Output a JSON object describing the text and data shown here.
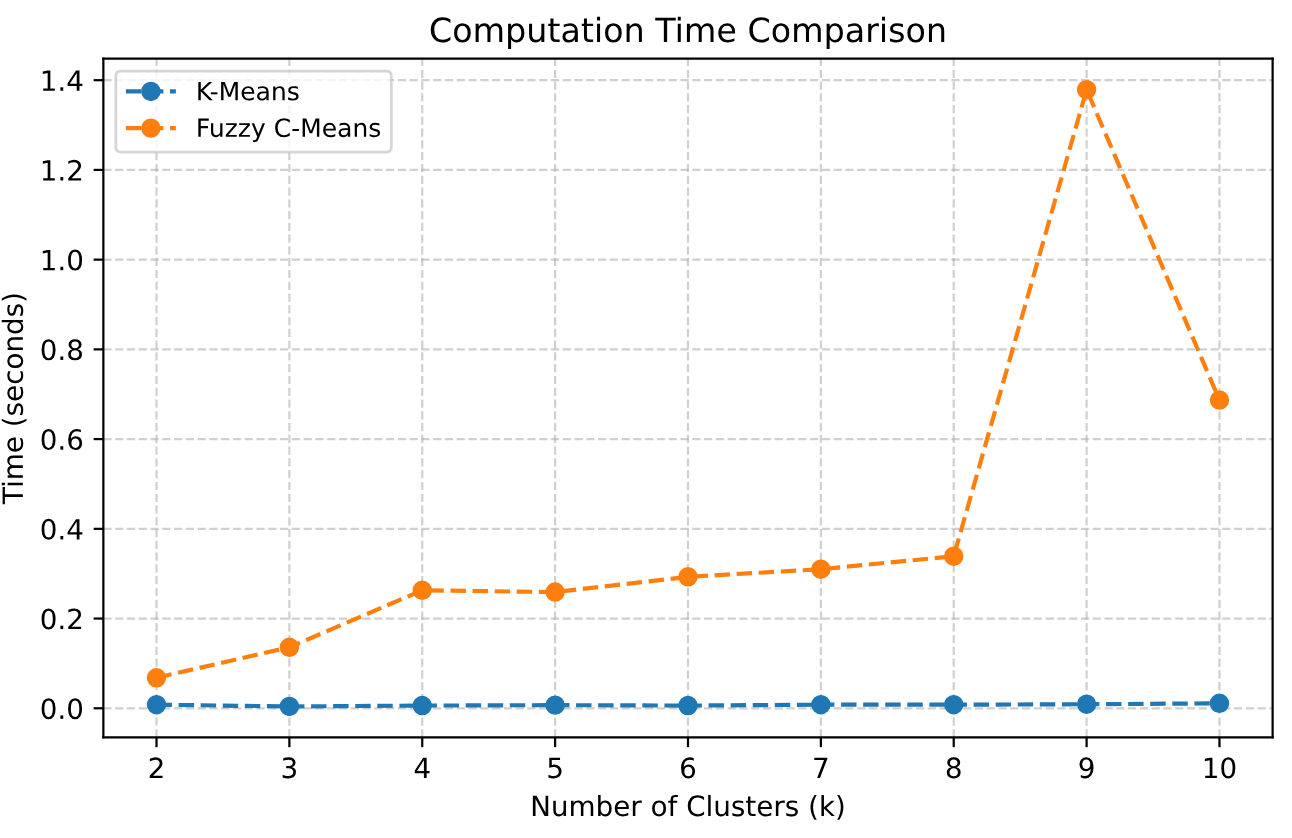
{
  "chart_data": {
    "type": "line",
    "title": "Computation Time Comparison",
    "xlabel": "Number of Clusters (k)",
    "ylabel": "Time (seconds)",
    "x": [
      2,
      3,
      4,
      5,
      6,
      7,
      8,
      9,
      10
    ],
    "series": [
      {
        "name": "K-Means",
        "color": "#1f77b4",
        "values": [
          0.008,
          0.004,
          0.006,
          0.007,
          0.006,
          0.008,
          0.008,
          0.009,
          0.011
        ]
      },
      {
        "name": "Fuzzy C-Means",
        "color": "#ff7f0e",
        "values": [
          0.068,
          0.136,
          0.263,
          0.259,
          0.293,
          0.31,
          0.339,
          1.379,
          0.687
        ]
      }
    ],
    "xlim": [
      1.6,
      10.4
    ],
    "ylim": [
      -0.065,
      1.448
    ],
    "xticks": [
      2,
      3,
      4,
      5,
      6,
      7,
      8,
      9,
      10
    ],
    "yticks": [
      {
        "value": 0,
        "label": "0.0"
      },
      {
        "value": 0.2,
        "label": "0.2"
      },
      {
        "value": 0.4,
        "label": "0.4"
      },
      {
        "value": 0.6,
        "label": "0.6"
      },
      {
        "value": 0.8,
        "label": "0.8"
      },
      {
        "value": 1.0,
        "label": "1.0"
      },
      {
        "value": 1.2,
        "label": "1.2"
      },
      {
        "value": 1.4,
        "label": "1.4"
      }
    ],
    "grid": true,
    "legend": "top left",
    "marker": "circle",
    "line_style": "dashed"
  }
}
